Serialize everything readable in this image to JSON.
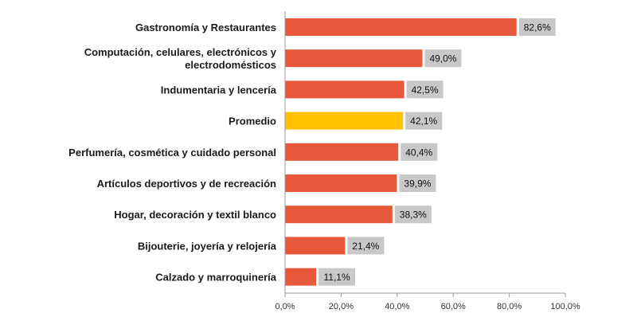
{
  "chart_data": {
    "type": "bar",
    "orientation": "horizontal",
    "categories": [
      [
        "Gastronomía y Restaurantes"
      ],
      [
        "Computación, celulares, electrónicos y",
        "electrodomésticos"
      ],
      [
        "Indumentaria y lencería"
      ],
      [
        "Promedio"
      ],
      [
        "Perfumería, cosmética y cuidado personal"
      ],
      [
        "Artículos deportivos y de recreación"
      ],
      [
        "Hogar, decoración y textil blanco"
      ],
      [
        "Bijouterie, joyería y relojería"
      ],
      [
        "Calzado y marroquinería"
      ]
    ],
    "values": [
      82.6,
      49.0,
      42.5,
      42.1,
      40.4,
      39.9,
      38.3,
      21.4,
      11.1
    ],
    "value_labels": [
      "82,6%",
      "49,0%",
      "42,5%",
      "42,1%",
      "40,4%",
      "39,9%",
      "38,3%",
      "21,4%",
      "11,1%"
    ],
    "highlight_index": 3,
    "colors": {
      "bar": "#e8593c",
      "highlight": "#ffc000",
      "label_bg": "#c8c8c8"
    },
    "xlim": [
      0,
      100
    ],
    "xticks": [
      0,
      20,
      40,
      60,
      80,
      100
    ],
    "xtick_labels": [
      "0,0%",
      "20,0%",
      "40,0%",
      "60,0%",
      "80,0%",
      "100,0%"
    ],
    "grid": false,
    "legend": "none",
    "title": "",
    "xlabel": "",
    "ylabel": ""
  }
}
